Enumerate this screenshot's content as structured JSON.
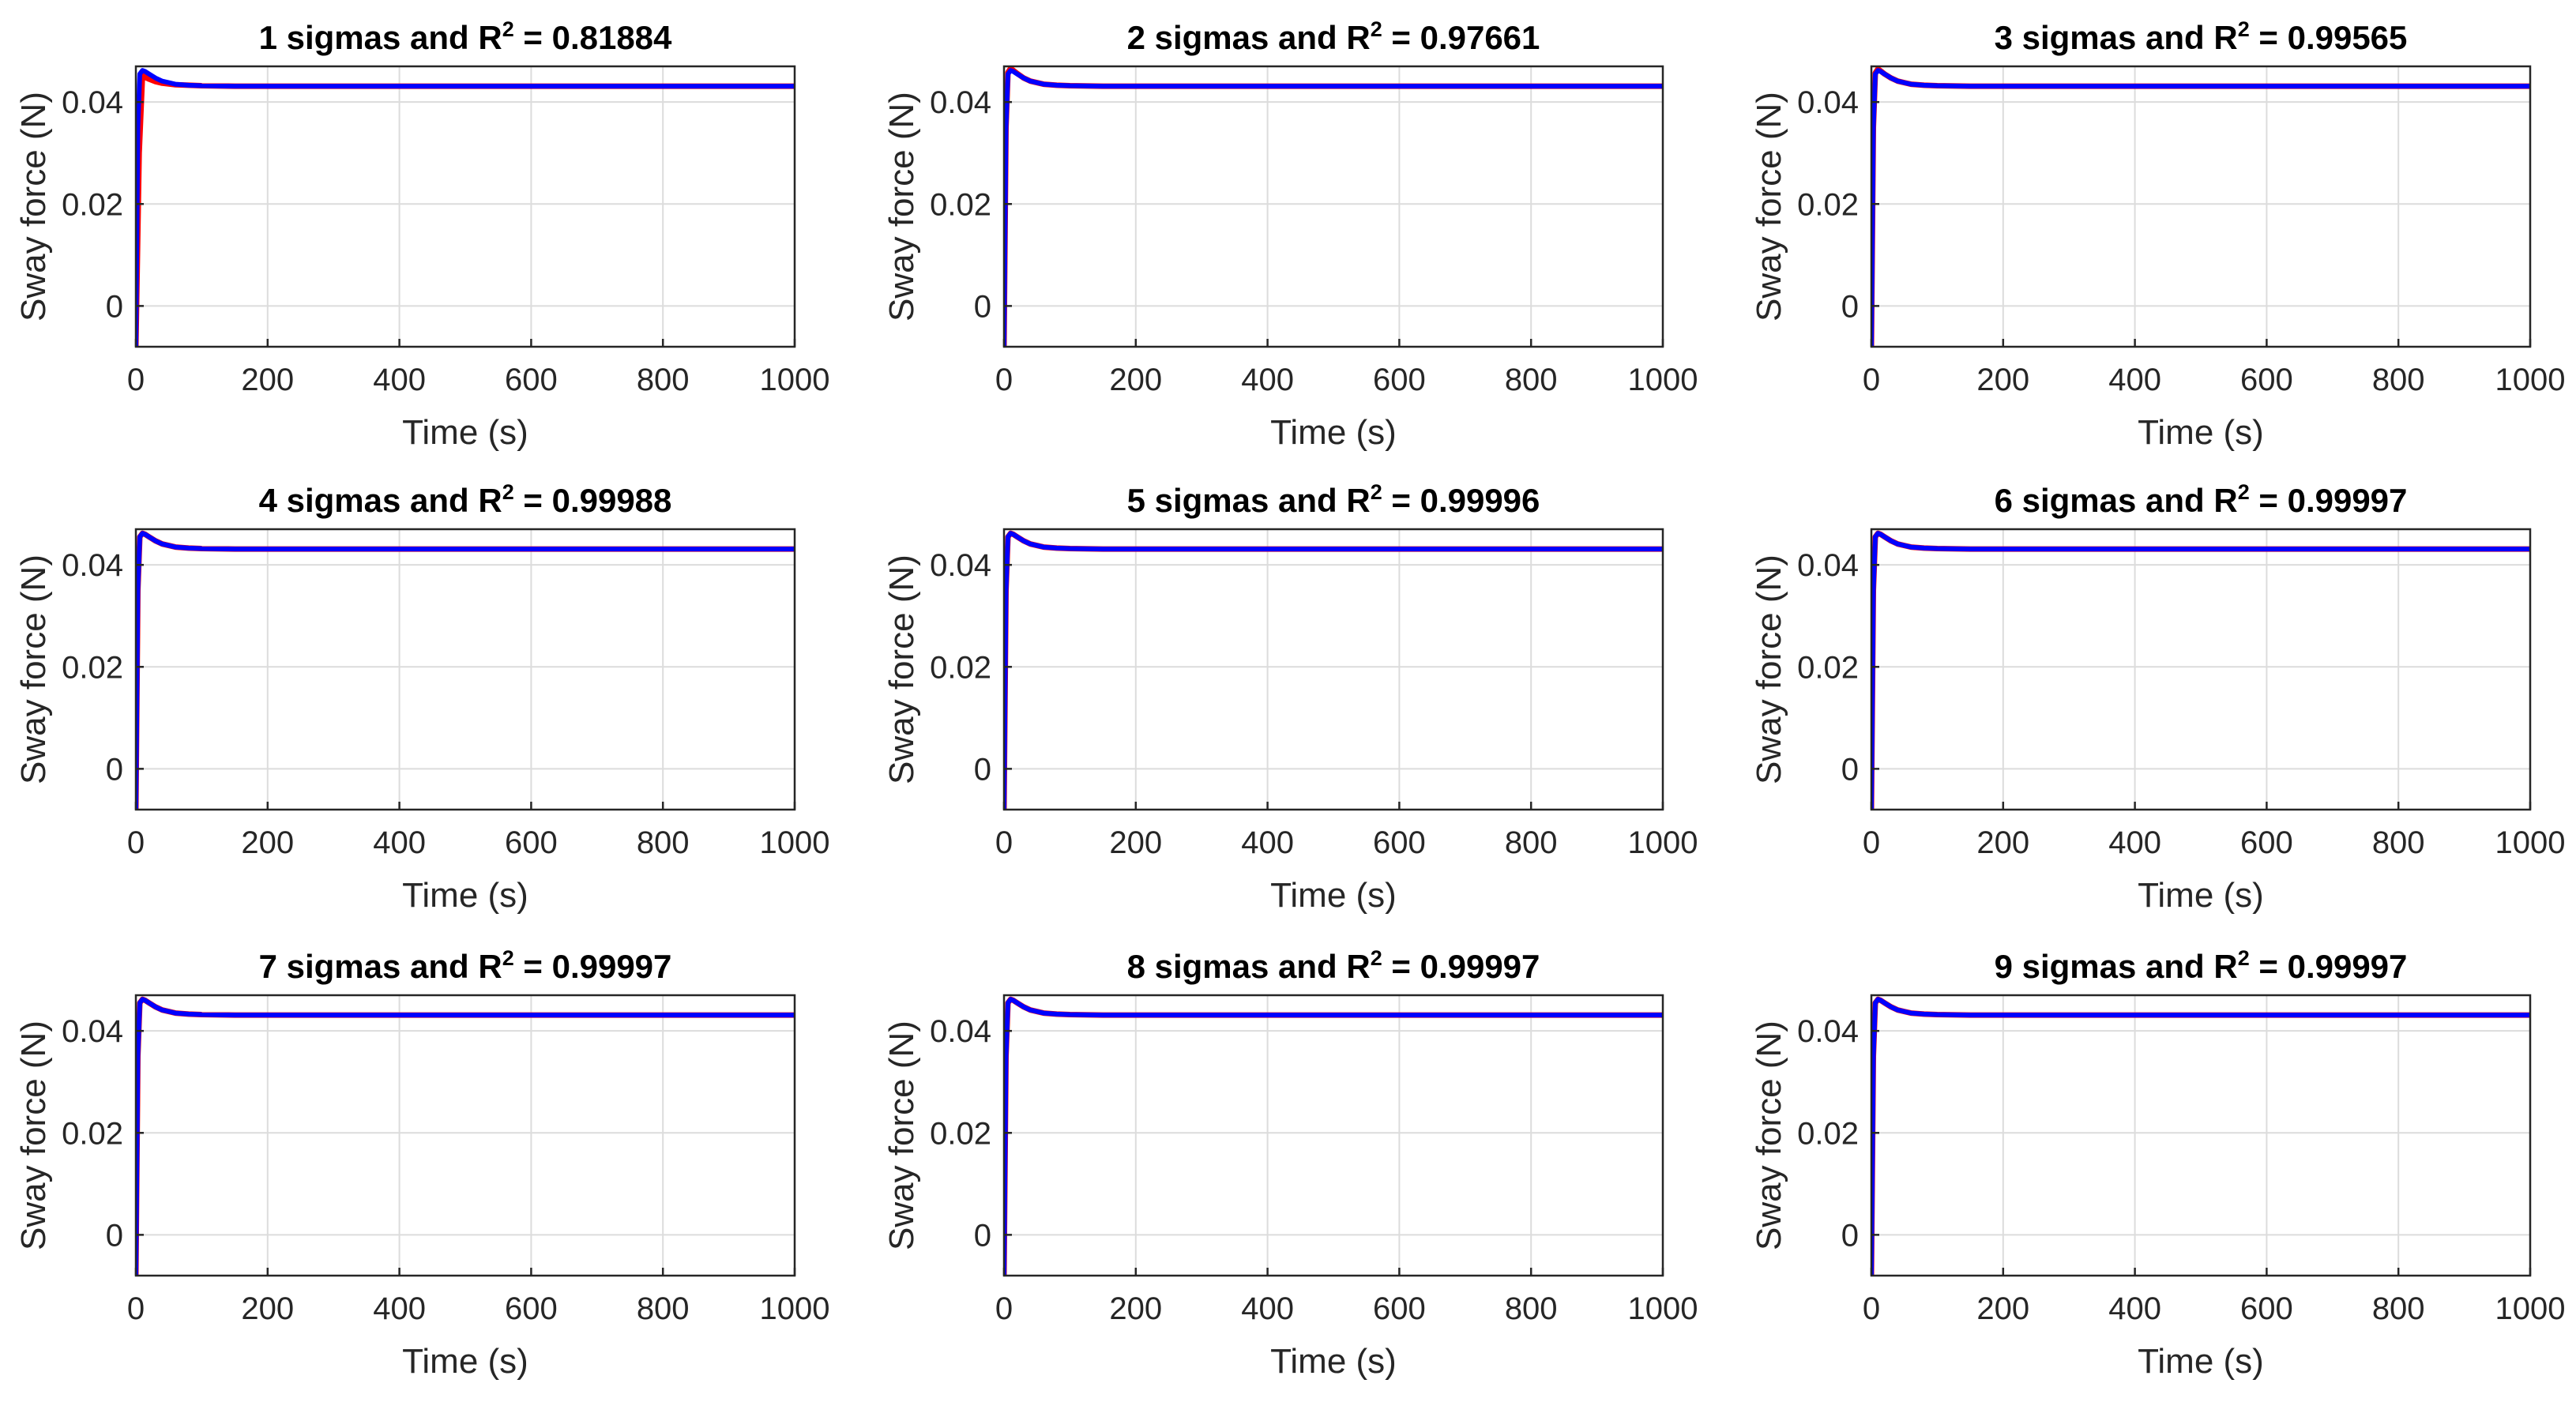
{
  "figure": {
    "colors": {
      "measured": "#ff0000",
      "fit": "#0000ff",
      "grid": "#dcdcdc",
      "axes": "#262626"
    }
  },
  "chart_data": [
    {
      "type": "line",
      "title": "1 sigmas and R2 = 0.81884",
      "title_parts": {
        "prefix": "1 sigmas and R",
        "sup": "2",
        "suffix": " = 0.81884"
      },
      "xlabel": "Time (s)",
      "ylabel": "Sway force (N)",
      "xlim": [
        0,
        1000
      ],
      "ylim": [
        -0.008,
        0.047
      ],
      "xticks": [
        0,
        200,
        400,
        600,
        800,
        1000
      ],
      "yticks": [
        0,
        0.02,
        0.04
      ],
      "ytick_labels": [
        "0",
        "0.02",
        "0.04"
      ],
      "grid": true,
      "series": [
        {
          "color": "#ff0000",
          "x": [
            0,
            5,
            10,
            15,
            20,
            30,
            40,
            60,
            80,
            100,
            150,
            200,
            400,
            600,
            800,
            1000
          ],
          "y": [
            -0.008,
            0.03,
            0.0452,
            0.0448,
            0.0445,
            0.044,
            0.0437,
            0.0434,
            0.0433,
            0.0432,
            0.0431,
            0.0431,
            0.0431,
            0.0431,
            0.0431,
            0.0431
          ]
        },
        {
          "color": "#0000ff",
          "x": [
            0,
            3,
            6,
            10,
            14,
            20,
            30,
            40,
            60,
            80,
            100,
            150,
            200,
            400,
            600,
            800,
            1000
          ],
          "y": [
            -0.008,
            0.035,
            0.0455,
            0.0462,
            0.046,
            0.0455,
            0.0447,
            0.0441,
            0.0435,
            0.0433,
            0.0432,
            0.0431,
            0.0431,
            0.0431,
            0.0431,
            0.0431,
            0.0431
          ]
        }
      ]
    },
    {
      "type": "line",
      "title": "2 sigmas and R2 = 0.97661",
      "title_parts": {
        "prefix": "2 sigmas and R",
        "sup": "2",
        "suffix": " = 0.97661"
      },
      "xlabel": "Time (s)",
      "ylabel": "Sway force (N)",
      "xlim": [
        0,
        1000
      ],
      "ylim": [
        -0.008,
        0.047
      ],
      "xticks": [
        0,
        200,
        400,
        600,
        800,
        1000
      ],
      "yticks": [
        0,
        0.02,
        0.04
      ],
      "ytick_labels": [
        "0",
        "0.02",
        "0.04"
      ],
      "grid": true,
      "series": [
        {
          "color": "#ff0000",
          "x": [
            0,
            3,
            6,
            10,
            14,
            20,
            30,
            40,
            60,
            80,
            100,
            150,
            200,
            400,
            600,
            800,
            1000
          ],
          "y": [
            -0.008,
            0.035,
            0.0458,
            0.0466,
            0.0462,
            0.0456,
            0.0447,
            0.0441,
            0.0435,
            0.0433,
            0.0432,
            0.0431,
            0.0431,
            0.0431,
            0.0431,
            0.0431,
            0.0431
          ]
        },
        {
          "color": "#0000ff",
          "x": [
            0,
            3,
            6,
            10,
            14,
            20,
            30,
            40,
            60,
            80,
            100,
            150,
            200,
            400,
            600,
            800,
            1000
          ],
          "y": [
            -0.008,
            0.035,
            0.0455,
            0.0462,
            0.046,
            0.0455,
            0.0447,
            0.0441,
            0.0435,
            0.0433,
            0.0432,
            0.0431,
            0.0431,
            0.0431,
            0.0431,
            0.0431,
            0.0431
          ]
        }
      ]
    },
    {
      "type": "line",
      "title": "3 sigmas and R2 = 0.99565",
      "title_parts": {
        "prefix": "3 sigmas and R",
        "sup": "2",
        "suffix": " = 0.99565"
      },
      "xlabel": "Time (s)",
      "ylabel": "Sway force (N)",
      "xlim": [
        0,
        1000
      ],
      "ylim": [
        -0.008,
        0.047
      ],
      "xticks": [
        0,
        200,
        400,
        600,
        800,
        1000
      ],
      "yticks": [
        0,
        0.02,
        0.04
      ],
      "ytick_labels": [
        "0",
        "0.02",
        "0.04"
      ],
      "grid": true,
      "series": [
        {
          "color": "#ff0000",
          "x": [
            0,
            3,
            6,
            10,
            14,
            20,
            30,
            40,
            60,
            80,
            100,
            150,
            200,
            400,
            600,
            800,
            1000
          ],
          "y": [
            -0.008,
            0.035,
            0.0457,
            0.0465,
            0.0461,
            0.0455,
            0.0447,
            0.0441,
            0.0435,
            0.0433,
            0.0432,
            0.0431,
            0.0431,
            0.0431,
            0.0431,
            0.0431,
            0.0431
          ]
        },
        {
          "color": "#0000ff",
          "x": [
            0,
            3,
            6,
            10,
            14,
            20,
            30,
            40,
            60,
            80,
            100,
            150,
            200,
            400,
            600,
            800,
            1000
          ],
          "y": [
            -0.008,
            0.035,
            0.0455,
            0.0462,
            0.046,
            0.0455,
            0.0447,
            0.0441,
            0.0435,
            0.0433,
            0.0432,
            0.0431,
            0.0431,
            0.0431,
            0.0431,
            0.0431,
            0.0431
          ]
        }
      ]
    },
    {
      "type": "line",
      "title": "4 sigmas and R2 = 0.99988",
      "title_parts": {
        "prefix": "4 sigmas and R",
        "sup": "2",
        "suffix": " = 0.99988"
      },
      "xlabel": "Time (s)",
      "ylabel": "Sway force (N)",
      "xlim": [
        0,
        1000
      ],
      "ylim": [
        -0.008,
        0.047
      ],
      "xticks": [
        0,
        200,
        400,
        600,
        800,
        1000
      ],
      "yticks": [
        0,
        0.02,
        0.04
      ],
      "ytick_labels": [
        "0",
        "0.02",
        "0.04"
      ],
      "grid": true,
      "series": [
        {
          "color": "#ff0000",
          "x": [
            0,
            3,
            6,
            10,
            14,
            20,
            30,
            40,
            60,
            80,
            100,
            150,
            200,
            400,
            600,
            800,
            1000
          ],
          "y": [
            -0.008,
            0.035,
            0.0455,
            0.0462,
            0.046,
            0.0455,
            0.0447,
            0.0441,
            0.0435,
            0.0433,
            0.0432,
            0.0431,
            0.0431,
            0.0431,
            0.0431,
            0.0431,
            0.0431
          ]
        },
        {
          "color": "#0000ff",
          "x": [
            0,
            3,
            6,
            10,
            14,
            20,
            30,
            40,
            60,
            80,
            100,
            150,
            200,
            400,
            600,
            800,
            1000
          ],
          "y": [
            -0.008,
            0.035,
            0.0455,
            0.0462,
            0.046,
            0.0455,
            0.0447,
            0.0441,
            0.0435,
            0.0433,
            0.0432,
            0.0431,
            0.0431,
            0.0431,
            0.0431,
            0.0431,
            0.0431
          ]
        }
      ]
    },
    {
      "type": "line",
      "title": "5 sigmas and R2 = 0.99996",
      "title_parts": {
        "prefix": "5 sigmas and R",
        "sup": "2",
        "suffix": " = 0.99996"
      },
      "xlabel": "Time (s)",
      "ylabel": "Sway force (N)",
      "xlim": [
        0,
        1000
      ],
      "ylim": [
        -0.008,
        0.047
      ],
      "xticks": [
        0,
        200,
        400,
        600,
        800,
        1000
      ],
      "yticks": [
        0,
        0.02,
        0.04
      ],
      "ytick_labels": [
        "0",
        "0.02",
        "0.04"
      ],
      "grid": true,
      "series": [
        {
          "color": "#ff0000",
          "x": [
            0,
            3,
            6,
            10,
            14,
            20,
            30,
            40,
            60,
            80,
            100,
            150,
            200,
            400,
            600,
            800,
            1000
          ],
          "y": [
            -0.008,
            0.035,
            0.0455,
            0.0462,
            0.046,
            0.0455,
            0.0447,
            0.0441,
            0.0435,
            0.0433,
            0.0432,
            0.0431,
            0.0431,
            0.0431,
            0.0431,
            0.0431,
            0.0431
          ]
        },
        {
          "color": "#0000ff",
          "x": [
            0,
            3,
            6,
            10,
            14,
            20,
            30,
            40,
            60,
            80,
            100,
            150,
            200,
            400,
            600,
            800,
            1000
          ],
          "y": [
            -0.008,
            0.035,
            0.0455,
            0.0462,
            0.046,
            0.0455,
            0.0447,
            0.0441,
            0.0435,
            0.0433,
            0.0432,
            0.0431,
            0.0431,
            0.0431,
            0.0431,
            0.0431,
            0.0431
          ]
        }
      ]
    },
    {
      "type": "line",
      "title": "6 sigmas and R2 = 0.99997",
      "title_parts": {
        "prefix": "6 sigmas and R",
        "sup": "2",
        "suffix": " = 0.99997"
      },
      "xlabel": "Time (s)",
      "ylabel": "Sway force (N)",
      "xlim": [
        0,
        1000
      ],
      "ylim": [
        -0.008,
        0.047
      ],
      "xticks": [
        0,
        200,
        400,
        600,
        800,
        1000
      ],
      "yticks": [
        0,
        0.02,
        0.04
      ],
      "ytick_labels": [
        "0",
        "0.02",
        "0.04"
      ],
      "grid": true,
      "series": [
        {
          "color": "#ff0000",
          "x": [
            0,
            3,
            6,
            10,
            14,
            20,
            30,
            40,
            60,
            80,
            100,
            150,
            200,
            400,
            600,
            800,
            1000
          ],
          "y": [
            -0.008,
            0.035,
            0.0455,
            0.0462,
            0.046,
            0.0455,
            0.0447,
            0.0441,
            0.0435,
            0.0433,
            0.0432,
            0.0431,
            0.0431,
            0.0431,
            0.0431,
            0.0431,
            0.0431
          ]
        },
        {
          "color": "#0000ff",
          "x": [
            0,
            3,
            6,
            10,
            14,
            20,
            30,
            40,
            60,
            80,
            100,
            150,
            200,
            400,
            600,
            800,
            1000
          ],
          "y": [
            -0.008,
            0.035,
            0.0455,
            0.0462,
            0.046,
            0.0455,
            0.0447,
            0.0441,
            0.0435,
            0.0433,
            0.0432,
            0.0431,
            0.0431,
            0.0431,
            0.0431,
            0.0431,
            0.0431
          ]
        }
      ]
    },
    {
      "type": "line",
      "title": "7 sigmas and R2 = 0.99997",
      "title_parts": {
        "prefix": "7 sigmas and R",
        "sup": "2",
        "suffix": " = 0.99997"
      },
      "xlabel": "Time (s)",
      "ylabel": "Sway force (N)",
      "xlim": [
        0,
        1000
      ],
      "ylim": [
        -0.008,
        0.047
      ],
      "xticks": [
        0,
        200,
        400,
        600,
        800,
        1000
      ],
      "yticks": [
        0,
        0.02,
        0.04
      ],
      "ytick_labels": [
        "0",
        "0.02",
        "0.04"
      ],
      "grid": true,
      "series": [
        {
          "color": "#ff0000",
          "x": [
            0,
            3,
            6,
            10,
            14,
            20,
            30,
            40,
            60,
            80,
            100,
            150,
            200,
            400,
            600,
            800,
            1000
          ],
          "y": [
            -0.008,
            0.035,
            0.0455,
            0.0462,
            0.046,
            0.0455,
            0.0447,
            0.0441,
            0.0435,
            0.0433,
            0.0432,
            0.0431,
            0.0431,
            0.0431,
            0.0431,
            0.0431,
            0.0431
          ]
        },
        {
          "color": "#0000ff",
          "x": [
            0,
            3,
            6,
            10,
            14,
            20,
            30,
            40,
            60,
            80,
            100,
            150,
            200,
            400,
            600,
            800,
            1000
          ],
          "y": [
            -0.008,
            0.035,
            0.0455,
            0.0462,
            0.046,
            0.0455,
            0.0447,
            0.0441,
            0.0435,
            0.0433,
            0.0432,
            0.0431,
            0.0431,
            0.0431,
            0.0431,
            0.0431,
            0.0431
          ]
        }
      ]
    },
    {
      "type": "line",
      "title": "8 sigmas and R2 = 0.99997",
      "title_parts": {
        "prefix": "8 sigmas and R",
        "sup": "2",
        "suffix": " = 0.99997"
      },
      "xlabel": "Time (s)",
      "ylabel": "Sway force (N)",
      "xlim": [
        0,
        1000
      ],
      "ylim": [
        -0.008,
        0.047
      ],
      "xticks": [
        0,
        200,
        400,
        600,
        800,
        1000
      ],
      "yticks": [
        0,
        0.02,
        0.04
      ],
      "ytick_labels": [
        "0",
        "0.02",
        "0.04"
      ],
      "grid": true,
      "series": [
        {
          "color": "#ff0000",
          "x": [
            0,
            3,
            6,
            10,
            14,
            20,
            30,
            40,
            60,
            80,
            100,
            150,
            200,
            400,
            600,
            800,
            1000
          ],
          "y": [
            -0.008,
            0.035,
            0.0455,
            0.0462,
            0.046,
            0.0455,
            0.0447,
            0.0441,
            0.0435,
            0.0433,
            0.0432,
            0.0431,
            0.0431,
            0.0431,
            0.0431,
            0.0431,
            0.0431
          ]
        },
        {
          "color": "#0000ff",
          "x": [
            0,
            3,
            6,
            10,
            14,
            20,
            30,
            40,
            60,
            80,
            100,
            150,
            200,
            400,
            600,
            800,
            1000
          ],
          "y": [
            -0.008,
            0.035,
            0.0455,
            0.0462,
            0.046,
            0.0455,
            0.0447,
            0.0441,
            0.0435,
            0.0433,
            0.0432,
            0.0431,
            0.0431,
            0.0431,
            0.0431,
            0.0431,
            0.0431
          ]
        }
      ]
    },
    {
      "type": "line",
      "title": "9 sigmas and R2 = 0.99997",
      "title_parts": {
        "prefix": "9 sigmas and R",
        "sup": "2",
        "suffix": " = 0.99997"
      },
      "xlabel": "Time (s)",
      "ylabel": "Sway force (N)",
      "xlim": [
        0,
        1000
      ],
      "ylim": [
        -0.008,
        0.047
      ],
      "xticks": [
        0,
        200,
        400,
        600,
        800,
        1000
      ],
      "yticks": [
        0,
        0.02,
        0.04
      ],
      "ytick_labels": [
        "0",
        "0.02",
        "0.04"
      ],
      "grid": true,
      "series": [
        {
          "color": "#ff0000",
          "x": [
            0,
            3,
            6,
            10,
            14,
            20,
            30,
            40,
            60,
            80,
            100,
            150,
            200,
            400,
            600,
            800,
            1000
          ],
          "y": [
            -0.008,
            0.035,
            0.0455,
            0.0462,
            0.046,
            0.0455,
            0.0447,
            0.0441,
            0.0435,
            0.0433,
            0.0432,
            0.0431,
            0.0431,
            0.0431,
            0.0431,
            0.0431,
            0.0431
          ]
        },
        {
          "color": "#0000ff",
          "x": [
            0,
            3,
            6,
            10,
            14,
            20,
            30,
            40,
            60,
            80,
            100,
            150,
            200,
            400,
            600,
            800,
            1000
          ],
          "y": [
            -0.008,
            0.035,
            0.0455,
            0.0462,
            0.046,
            0.0455,
            0.0447,
            0.0441,
            0.0435,
            0.0433,
            0.0432,
            0.0431,
            0.0431,
            0.0431,
            0.0431,
            0.0431,
            0.0431
          ]
        }
      ]
    }
  ]
}
